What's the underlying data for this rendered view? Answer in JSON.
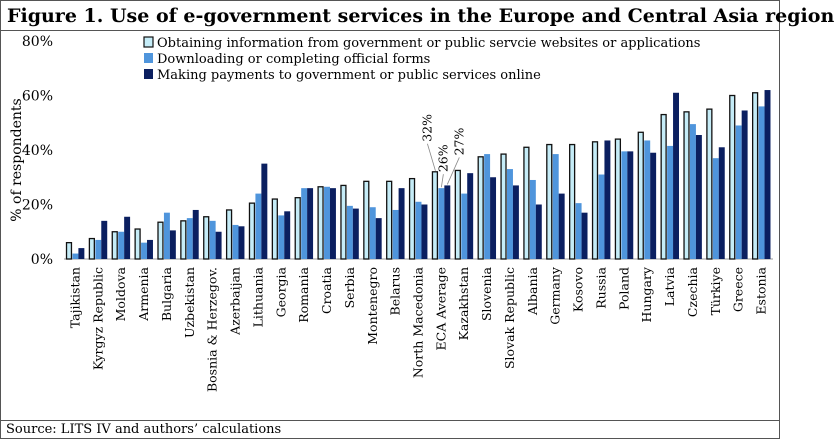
{
  "title": "Figure 1. Use of e-government services in the Europe and Central Asia region",
  "source": "Source: LITS IV and authors’ calculations",
  "colors": {
    "obtaining": "#c5ecf7",
    "downloading": "#4f95dc",
    "payments": "#0b1f60"
  },
  "chart_data": {
    "type": "bar",
    "ylabel": "% of respondents",
    "ylim": [
      0,
      80
    ],
    "yticks": [
      "0%",
      "20%",
      "40%",
      "60%",
      "80%"
    ],
    "grid": false,
    "legend": "top",
    "categories": [
      "Tajikistan",
      "Kyrgyz Republic",
      "Moldova",
      "Armenia",
      "Bulgaria",
      "Uzbekistan",
      "Bosnia & Herzegov.",
      "Azerbaijan",
      "Lithuania",
      "Georgia",
      "Romania",
      "Croatia",
      "Serbia",
      "Montenegro",
      "Belarus",
      "North Macedonia",
      "ECA Average",
      "Kazakhstan",
      "Slovenia",
      "Slovak Republic",
      "Albania",
      "Germany",
      "Kosovo",
      "Russia",
      "Poland",
      "Hungary",
      "Latvia",
      "Czechia",
      "Türkiye",
      "Greece",
      "Estonia"
    ],
    "series": [
      {
        "name": "Obtaining information from government or public servcie websites or applications",
        "values": [
          6,
          7.5,
          10,
          11,
          13.5,
          14,
          15.5,
          18,
          20.5,
          22,
          22.5,
          26.5,
          27,
          28.5,
          28.5,
          29.5,
          32,
          32.5,
          37.5,
          38.5,
          41,
          42,
          42,
          43,
          44,
          46.5,
          53,
          54,
          55,
          60,
          61
        ]
      },
      {
        "name": "Downloading or completing official forms",
        "values": [
          2,
          7,
          10,
          6,
          17,
          15,
          14,
          12.5,
          24,
          16,
          26,
          26.5,
          19.5,
          19,
          18,
          21,
          26,
          24,
          38.5,
          33,
          29,
          38.5,
          20.5,
          31,
          39.5,
          43.5,
          41.5,
          49.5,
          37,
          49,
          56
        ]
      },
      {
        "name": "Making payments to government or public services online",
        "values": [
          4,
          14,
          15.5,
          7,
          10.5,
          18,
          10,
          12,
          35,
          17.5,
          26,
          26,
          18.5,
          15,
          26,
          20,
          27,
          31.5,
          30,
          27,
          20,
          24,
          17,
          43.5,
          39.5,
          39,
          61,
          45.5,
          41,
          54.5,
          62
        ]
      }
    ],
    "annotations": [
      {
        "category": "ECA Average",
        "series": 0,
        "label": "32%"
      },
      {
        "category": "ECA Average",
        "series": 1,
        "label": "26%"
      },
      {
        "category": "ECA Average",
        "series": 2,
        "label": "27%"
      }
    ]
  }
}
